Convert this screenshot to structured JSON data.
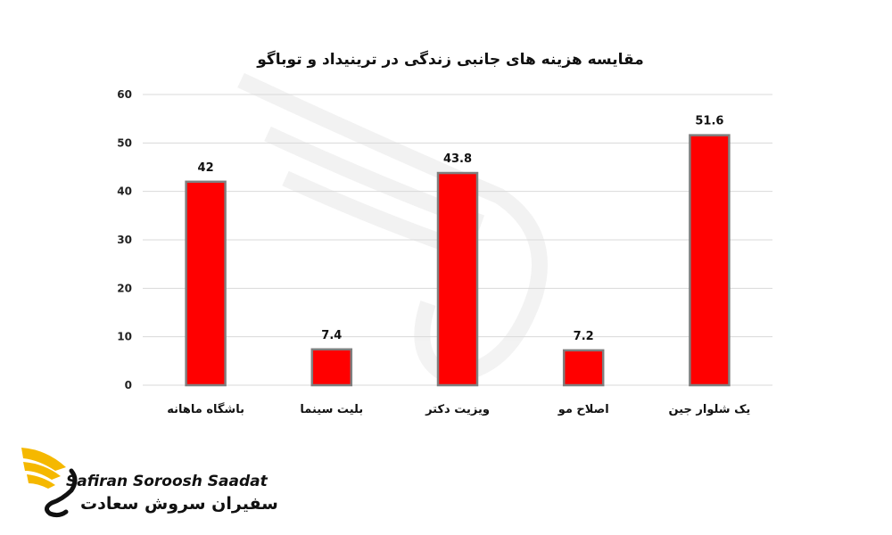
{
  "chart_data": {
    "type": "bar",
    "title": "مقایسه  هزینه های جانبی زندگی در ترینیداد و توباگو",
    "categories": [
      "باشگاه ماهانه",
      "بلیت سینما",
      "ویزیت دکتر",
      "اصلاح مو",
      "یک شلوار جین"
    ],
    "values": [
      42,
      7.4,
      43.8,
      7.2,
      51.6
    ],
    "value_labels": [
      "42",
      "7.4",
      "43.8",
      "7.2",
      "51.6"
    ],
    "yticks": [
      "0",
      "10",
      "20",
      "30",
      "40",
      "50",
      "60"
    ],
    "ylim": [
      0,
      60
    ],
    "grid": true,
    "bar_color": "#ff0000",
    "bar_border_color": "#7f7f7f"
  },
  "brand": {
    "name_en": "Safiran Soroosh Saadat",
    "name_fa": "سفیران سروش سعادت",
    "accent_color": "#f5b800"
  }
}
